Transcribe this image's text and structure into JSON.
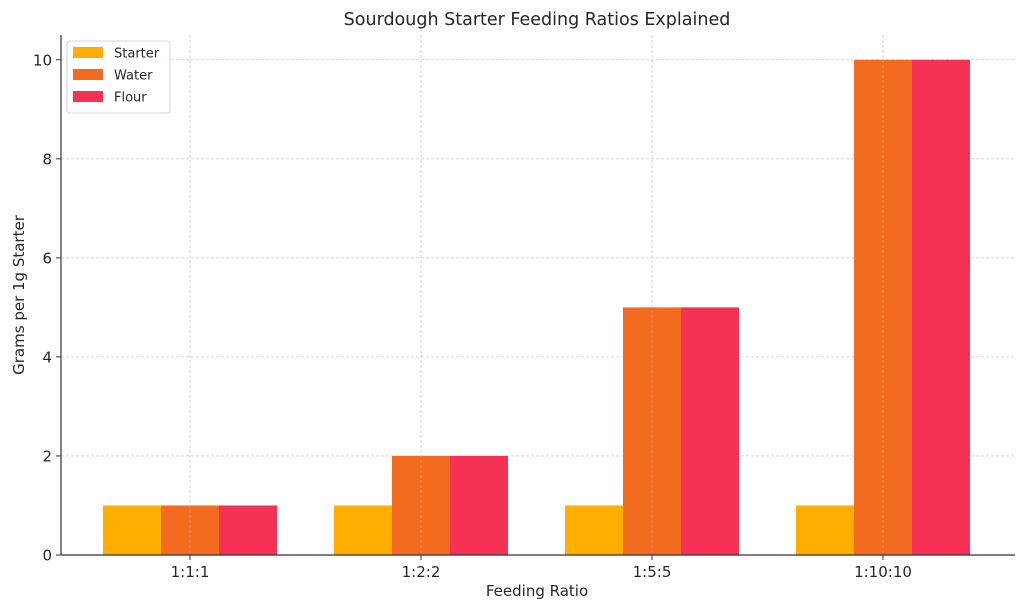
{
  "chart_data": {
    "type": "bar",
    "title": "Sourdough Starter Feeding Ratios Explained",
    "xlabel": "Feeding Ratio",
    "ylabel": "Grams per 1g Starter",
    "categories": [
      "1:1:1",
      "1:2:2",
      "1:5:5",
      "1:10:10"
    ],
    "series": [
      {
        "name": "Starter",
        "color": "#ffad00",
        "values": [
          1,
          1,
          1,
          1
        ]
      },
      {
        "name": "Water",
        "color": "#f26b21",
        "values": [
          1,
          2,
          5,
          10
        ]
      },
      {
        "name": "Flour",
        "color": "#f53256",
        "values": [
          1,
          2,
          5,
          10
        ]
      }
    ],
    "ylim": [
      0,
      10.5
    ],
    "yticks": [
      0,
      2,
      4,
      6,
      8,
      10
    ],
    "grid": true,
    "legend_position": "top-left"
  }
}
